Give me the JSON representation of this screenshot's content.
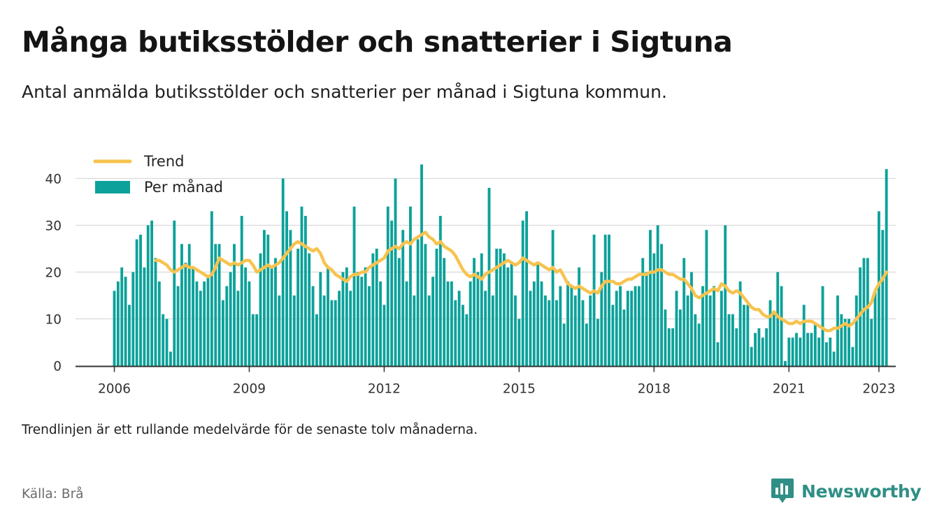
{
  "title": "Många butiksstölder och snatterier i Sigtuna",
  "subtitle": "Antal anmälda butiksstölder och snatterier per månad i Sigtuna kommun.",
  "note": "Trendlinjen är ett rullande medelvärde för de senaste tolv månaderna.",
  "source": "Källa: Brå",
  "brand": "Newsworthy",
  "colors": {
    "bar": "#0ca19a",
    "trend": "#f7c34f",
    "brand": "#2f8f86",
    "grid": "#d9d9d9",
    "axis": "#333333"
  },
  "chart_data": {
    "type": "bar",
    "start": "2006-01",
    "xticks": [
      {
        "label": "2006",
        "index": 0
      },
      {
        "label": "2009",
        "index": 36
      },
      {
        "label": "2012",
        "index": 72
      },
      {
        "label": "2015",
        "index": 108
      },
      {
        "label": "2018",
        "index": 144
      },
      {
        "label": "2021",
        "index": 180
      },
      {
        "label": "2023",
        "index": 204
      }
    ],
    "yticks": [
      0,
      10,
      20,
      30,
      40
    ],
    "ylim": [
      0,
      44
    ],
    "legend": {
      "position": "top-left",
      "items": [
        {
          "label": "Trend",
          "kind": "line"
        },
        {
          "label": "Per månad",
          "kind": "bar"
        }
      ]
    },
    "series": [
      {
        "name": "Per månad",
        "kind": "bar",
        "values": [
          16,
          18,
          21,
          19,
          13,
          20,
          27,
          28,
          21,
          30,
          31,
          23,
          18,
          11,
          10,
          3,
          31,
          17,
          26,
          22,
          26,
          21,
          18,
          16,
          18,
          19,
          33,
          26,
          26,
          14,
          17,
          20,
          26,
          16,
          32,
          21,
          18,
          11,
          11,
          24,
          29,
          28,
          21,
          23,
          15,
          40,
          33,
          29,
          15,
          25,
          34,
          32,
          24,
          17,
          11,
          20,
          15,
          21,
          14,
          14,
          16,
          20,
          21,
          16,
          34,
          20,
          19,
          21,
          17,
          24,
          25,
          18,
          13,
          34,
          31,
          40,
          23,
          29,
          18,
          34,
          15,
          27,
          43,
          26,
          15,
          19,
          25,
          32,
          23,
          18,
          18,
          14,
          16,
          13,
          11,
          18,
          23,
          20,
          24,
          16,
          38,
          15,
          25,
          25,
          24,
          21,
          22,
          15,
          10,
          31,
          33,
          16,
          18,
          22,
          18,
          15,
          14,
          29,
          14,
          17,
          9,
          18,
          17,
          15,
          21,
          14,
          9,
          15,
          28,
          10,
          20,
          28,
          28,
          13,
          16,
          17,
          12,
          16,
          16,
          17,
          17,
          23,
          20,
          29,
          24,
          30,
          26,
          12,
          8,
          8,
          16,
          12,
          23,
          15,
          20,
          11,
          9,
          17,
          29,
          15,
          17,
          5,
          16,
          30,
          11,
          11,
          8,
          18,
          13,
          13,
          4,
          7,
          8,
          6,
          8,
          14,
          11,
          20,
          17,
          1,
          6,
          6,
          7,
          6,
          13,
          7,
          7,
          9,
          6,
          17,
          5,
          6,
          3,
          15,
          11,
          10,
          10,
          4,
          15,
          21,
          23,
          23,
          10,
          16,
          33,
          29,
          42
        ]
      },
      {
        "name": "Trend",
        "kind": "line",
        "values": [
          null,
          null,
          null,
          null,
          null,
          null,
          null,
          null,
          null,
          null,
          null,
          22.5,
          22.5,
          22.0,
          21.5,
          20.5,
          20.0,
          20.5,
          21.0,
          21.5,
          21.0,
          21.0,
          20.5,
          20.0,
          19.5,
          19.0,
          19.5,
          21.0,
          23.0,
          22.5,
          22.0,
          21.5,
          22.0,
          21.5,
          22.0,
          22.5,
          22.5,
          21.5,
          20.0,
          20.5,
          21.0,
          21.5,
          21.0,
          21.5,
          22.0,
          23.0,
          24.0,
          25.0,
          26.0,
          26.5,
          26.0,
          25.5,
          25.0,
          24.5,
          25.0,
          24.0,
          22.0,
          21.0,
          20.5,
          19.5,
          19.0,
          18.5,
          18.0,
          19.0,
          19.5,
          19.5,
          20.0,
          20.0,
          21.0,
          21.5,
          22.0,
          22.5,
          23.0,
          24.5,
          25.0,
          25.5,
          25.0,
          26.0,
          26.5,
          26.0,
          27.0,
          27.5,
          28.0,
          28.5,
          27.5,
          27.0,
          26.0,
          26.5,
          25.5,
          25.0,
          24.5,
          23.5,
          22.0,
          20.5,
          19.5,
          19.0,
          19.5,
          19.0,
          18.5,
          19.5,
          20.0,
          20.5,
          21.0,
          21.5,
          22.0,
          22.5,
          22.0,
          21.5,
          22.0,
          23.0,
          22.5,
          22.0,
          21.5,
          22.0,
          21.5,
          21.0,
          20.5,
          21.0,
          20.0,
          20.5,
          19.0,
          17.5,
          17.0,
          16.5,
          17.0,
          16.5,
          16.0,
          15.5,
          16.0,
          15.5,
          17.0,
          18.0,
          18.0,
          18.0,
          17.5,
          17.5,
          18.0,
          18.5,
          18.5,
          19.0,
          19.5,
          19.5,
          19.5,
          20.0,
          20.0,
          20.5,
          20.5,
          20.0,
          19.5,
          19.5,
          19.0,
          18.5,
          18.5,
          17.5,
          16.5,
          15.0,
          14.5,
          15.0,
          15.5,
          16.0,
          16.5,
          16.0,
          17.5,
          17.0,
          16.0,
          15.5,
          16.0,
          15.5,
          14.5,
          13.5,
          12.5,
          12.0,
          12.0,
          11.0,
          10.5,
          10.5,
          11.5,
          10.5,
          10.0,
          9.5,
          9.0,
          9.0,
          9.5,
          9.0,
          9.5,
          9.5,
          9.5,
          9.0,
          8.5,
          8.0,
          7.5,
          7.5,
          8.0,
          8.0,
          8.5,
          9.0,
          8.5,
          9.0,
          10.0,
          11.0,
          12.0,
          12.5,
          13.5,
          16.0,
          17.5,
          18.5,
          20.0
        ]
      }
    ]
  }
}
